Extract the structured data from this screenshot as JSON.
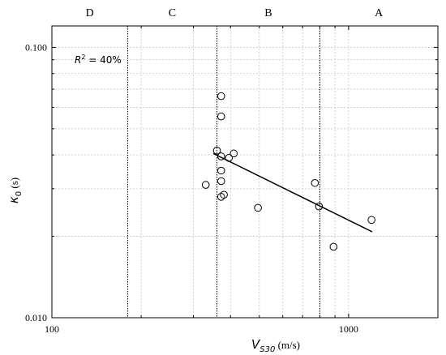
{
  "chart_data": {
    "type": "scatter",
    "title": "",
    "xlabel": "V_S30 (m/s)",
    "xlabel_main": "V",
    "xlabel_sub": "S30",
    "xlabel_unit": " (m/s)",
    "ylabel": "κ0 (s)",
    "ylabel_main": "κ",
    "ylabel_sub": "0",
    "ylabel_unit": " (s)",
    "xscale": "log",
    "yscale": "log",
    "xlim": [
      100,
      2000
    ],
    "ylim": [
      0.01,
      0.12
    ],
    "x_ticks": [
      {
        "value": 100,
        "label": "100"
      },
      {
        "value": 1000,
        "label": "1000"
      }
    ],
    "y_ticks": [
      {
        "value": 0.01,
        "label": "0.010"
      },
      {
        "value": 0.1,
        "label": "0.100"
      }
    ],
    "grid": true,
    "annotation": {
      "prefix": "R",
      "sup": "2",
      "suffix": " = 40%"
    },
    "site_classes": [
      {
        "label": "D",
        "x_from": 100,
        "x_to": 180
      },
      {
        "label": "C",
        "x_from": 180,
        "x_to": 360
      },
      {
        "label": "B",
        "x_from": 360,
        "x_to": 800
      },
      {
        "label": "A",
        "x_from": 800,
        "x_to": 2000
      }
    ],
    "class_boundaries": [
      180,
      360,
      800
    ],
    "series": [
      {
        "type": "scatter",
        "points": [
          [
            330,
            0.031
          ],
          [
            360,
            0.0415
          ],
          [
            372,
            0.066
          ],
          [
            372,
            0.0555
          ],
          [
            372,
            0.0395
          ],
          [
            372,
            0.035
          ],
          [
            372,
            0.032
          ],
          [
            372,
            0.028
          ],
          [
            380,
            0.0285
          ],
          [
            395,
            0.039
          ],
          [
            410,
            0.0405
          ],
          [
            495,
            0.0255
          ],
          [
            770,
            0.0315
          ],
          [
            795,
            0.0258
          ],
          [
            890,
            0.0183
          ],
          [
            1195,
            0.023
          ]
        ]
      },
      {
        "type": "line",
        "points": [
          [
            350,
            0.0405
          ],
          [
            1200,
            0.0208
          ]
        ]
      }
    ]
  }
}
